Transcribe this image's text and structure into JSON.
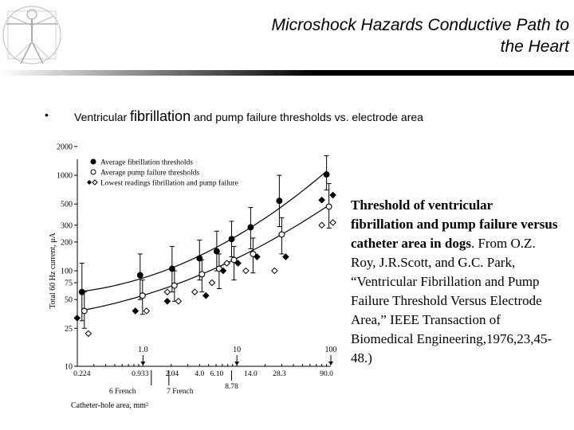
{
  "slide": {
    "title_line1": "Microshock Hazards  Conductive Path to",
    "title_line2": "the Heart",
    "bullet_dot": "•",
    "bullet_pre": "Ventricular ",
    "bullet_big": "fibrillation",
    "bullet_post": " and pump failure thresholds vs. electrode area",
    "caption_bold": "Threshold of ventricular fibrillation and pump failure versus catheter area in dogs",
    "caption_rest": ". From O.Z. Roy, J.R.Scott, and G.C. Park, “Ventricular Fibrillation and Pump Failure Threshold Versus Electrode Area,” IEEE Transaction of Biomedical Engineering,1976,23,45-48.)"
  },
  "chart_data": {
    "type": "scatter",
    "xlabel": "Catheter-hole area, mm²",
    "ylabel": "Total 60 Hz current, μA",
    "x_scale": "log",
    "y_scale": "log",
    "xlim": [
      0.2,
      100
    ],
    "ylim": [
      10,
      2000
    ],
    "x_ticks": [
      0.224,
      0.933,
      2.04,
      4.0,
      6.1,
      14.0,
      28.3,
      90.0
    ],
    "x_tick_labels": [
      "0.224",
      "0.933",
      "2.04",
      "4.0",
      "6.10",
      "14.0",
      "28.3",
      "90.0"
    ],
    "top_ticks": [
      1.0,
      10,
      100
    ],
    "top_tick_labels": [
      "1.0",
      "10",
      "100"
    ],
    "y_ticks": [
      10,
      25,
      50,
      75,
      100,
      200,
      300,
      500,
      1000,
      2000
    ],
    "y_tick_labels": [
      "10",
      "25",
      "50",
      "75",
      "100",
      "200",
      "300",
      "500",
      "1000",
      "2000"
    ],
    "annotations": [
      {
        "text": "6 French",
        "x": 0.933
      },
      {
        "text": "7 French",
        "x": 2.04
      },
      {
        "text": "8.78",
        "x": 8.78
      }
    ],
    "series": [
      {
        "name": "Average fibrillation thresholds",
        "marker": "filled-circle",
        "x": [
          0.224,
          0.933,
          2.04,
          4.0,
          6.1,
          8.78,
          14.0,
          28.3,
          90.0
        ],
        "y": [
          60,
          90,
          105,
          135,
          160,
          215,
          285,
          540,
          1020
        ],
        "err": [
          [
            30,
            120
          ],
          [
            50,
            150
          ],
          [
            60,
            180
          ],
          [
            80,
            210
          ],
          [
            100,
            260
          ],
          [
            140,
            330
          ],
          [
            170,
            460
          ],
          [
            290,
            1000
          ],
          [
            700,
            1600
          ]
        ]
      },
      {
        "name": "Average pump failure thresholds",
        "marker": "open-circle",
        "x": [
          0.224,
          0.933,
          2.04,
          4.0,
          6.1,
          8.78,
          14.0,
          28.3,
          90.0
        ],
        "y": [
          38,
          55,
          70,
          92,
          105,
          130,
          150,
          240,
          470
        ],
        "err": [
          [
            25,
            60
          ],
          [
            35,
            80
          ],
          [
            48,
            100
          ],
          [
            60,
            130
          ],
          [
            65,
            150
          ],
          [
            80,
            180
          ],
          [
            95,
            220
          ],
          [
            150,
            360
          ],
          [
            280,
            820
          ]
        ]
      },
      {
        "name": "Lowest readings fibrillation and pump failure",
        "marker": "diamond",
        "x": [
          0.224,
          0.224,
          0.933,
          0.933,
          2.04,
          2.04,
          2.04,
          4.0,
          4.0,
          6.1,
          6.1,
          8.78,
          8.78,
          14.0,
          14.0,
          28.3,
          28.3,
          90.0,
          90.0,
          90.0,
          90.0
        ],
        "filled": [
          true,
          false,
          true,
          false,
          true,
          false,
          false,
          true,
          false,
          true,
          false,
          true,
          false,
          true,
          false,
          true,
          false,
          true,
          true,
          false,
          false
        ],
        "y": [
          32,
          22,
          38,
          38,
          48,
          48,
          60,
          55,
          60,
          100,
          75,
          120,
          120,
          140,
          100,
          140,
          100,
          620,
          550,
          320,
          300
        ]
      }
    ]
  }
}
